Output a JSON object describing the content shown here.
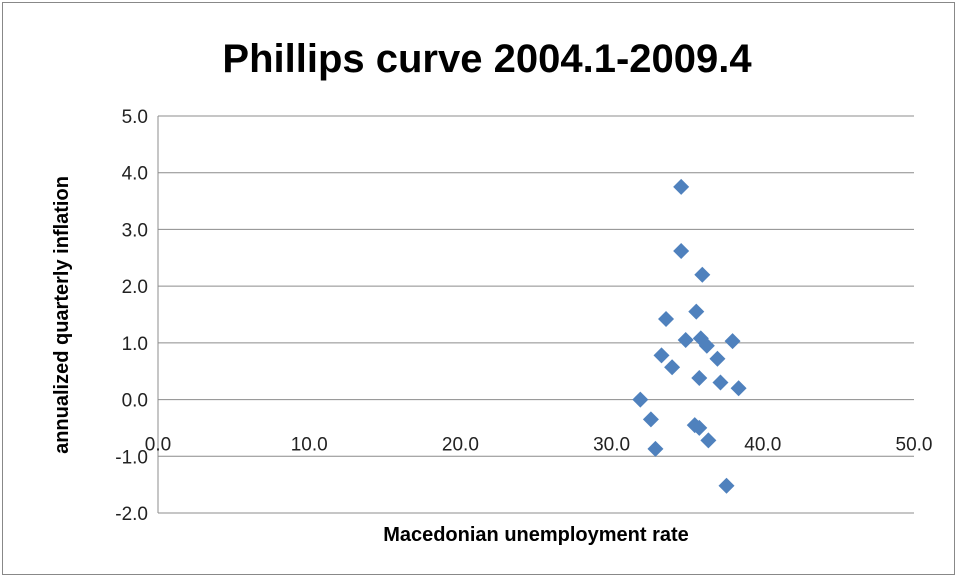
{
  "chart_data": {
    "type": "scatter",
    "title": "Phillips curve 2004.1-2009.4",
    "xlabel": "Macedonian unemployment  rate",
    "ylabel": "annualized quarterly inflation",
    "xlim": [
      0,
      50
    ],
    "ylim": [
      -2,
      5
    ],
    "xticks": [
      "0.0",
      "10.0",
      "20.0",
      "30.0",
      "40.0",
      "50.0"
    ],
    "yticks": [
      "5.0",
      "4.0",
      "3.0",
      "2.0",
      "1.0",
      "0.0",
      "-1.0",
      "-2.0"
    ],
    "grid": "horizontal",
    "marker_color": "#4f81bd",
    "marker": "diamond",
    "points": [
      {
        "x": 34.6,
        "y": 3.75
      },
      {
        "x": 34.6,
        "y": 2.62
      },
      {
        "x": 36.0,
        "y": 2.2
      },
      {
        "x": 35.6,
        "y": 1.55
      },
      {
        "x": 33.6,
        "y": 1.42
      },
      {
        "x": 34.9,
        "y": 1.05
      },
      {
        "x": 35.9,
        "y": 1.08
      },
      {
        "x": 36.3,
        "y": 0.95
      },
      {
        "x": 38.0,
        "y": 1.03
      },
      {
        "x": 33.3,
        "y": 0.78
      },
      {
        "x": 37.0,
        "y": 0.72
      },
      {
        "x": 34.0,
        "y": 0.57
      },
      {
        "x": 35.8,
        "y": 0.38
      },
      {
        "x": 37.2,
        "y": 0.3
      },
      {
        "x": 38.4,
        "y": 0.2
      },
      {
        "x": 31.9,
        "y": 0.0
      },
      {
        "x": 32.6,
        "y": -0.35
      },
      {
        "x": 35.5,
        "y": -0.45
      },
      {
        "x": 35.8,
        "y": -0.5
      },
      {
        "x": 36.4,
        "y": -0.72
      },
      {
        "x": 32.9,
        "y": -0.87
      },
      {
        "x": 37.6,
        "y": -1.52
      }
    ]
  }
}
